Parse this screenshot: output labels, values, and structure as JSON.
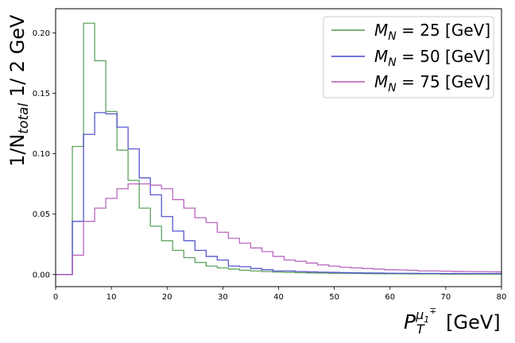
{
  "chart_data": {
    "type": "line",
    "title": "",
    "xlabel": {
      "main": "P",
      "sub": "T",
      "sup": "μ",
      "sup_sub": "1",
      "sup_sup": "∓",
      "unit": " [GeV]"
    },
    "ylabel": {
      "pre": "1/N",
      "sub": "total",
      "post": " 1/ 2 GeV"
    },
    "xlim": [
      0,
      80
    ],
    "ylim": [
      -0.01,
      0.22
    ],
    "xticks": [
      0,
      10,
      20,
      30,
      40,
      50,
      60,
      70,
      80
    ],
    "xtick_labels": [
      "0",
      "10",
      "20",
      "30",
      "40",
      "50",
      "60",
      "70",
      "80"
    ],
    "yticks": [
      0.0,
      0.05,
      0.1,
      0.15,
      0.2
    ],
    "ytick_labels": [
      "0.00",
      "0.05",
      "0.10",
      "0.15",
      "0.20"
    ],
    "grid": false,
    "legend_position": "top-right",
    "bin_edges": [
      0,
      1,
      3,
      5,
      7,
      9,
      11,
      13,
      15,
      17,
      19,
      21,
      23,
      25,
      27,
      29,
      31,
      33,
      35,
      37,
      39,
      41,
      43,
      45,
      47,
      49,
      51,
      53,
      55,
      57,
      59,
      61,
      63,
      65,
      67,
      69,
      71,
      73,
      75,
      77,
      79,
      80
    ],
    "series": [
      {
        "name": "M_N = 25 [GeV]",
        "legend": {
          "main": "M",
          "sub": "N",
          "rest": " = 25 [GeV]"
        },
        "color": "#4e9a4e",
        "values": [
          0,
          0,
          0.106,
          0.208,
          0.177,
          0.135,
          0.103,
          0.078,
          0.055,
          0.04,
          0.028,
          0.02,
          0.014,
          0.01,
          0.007,
          0.0055,
          0.0045,
          0.0035,
          0.003,
          0.0025,
          0.002,
          0.0018,
          0.0015,
          0.0013,
          0.0012,
          0.001,
          0.001,
          0.0009,
          0.0008,
          0.0007,
          0.0006,
          0.0006,
          0.0005,
          0.0005,
          0.0005,
          0.0004,
          0.0004,
          0.0004,
          0.0004,
          0.0004,
          0.0004
        ]
      },
      {
        "name": "M_N = 50 [GeV]",
        "legend": {
          "main": "M",
          "sub": "N",
          "rest": " = 50 [GeV]"
        },
        "color": "#4444cc",
        "values": [
          0,
          0,
          0.044,
          0.116,
          0.134,
          0.133,
          0.122,
          0.104,
          0.08,
          0.066,
          0.048,
          0.036,
          0.028,
          0.02,
          0.015,
          0.012,
          0.007,
          0.0065,
          0.005,
          0.004,
          0.003,
          0.003,
          0.0025,
          0.0022,
          0.002,
          0.0018,
          0.0016,
          0.0014,
          0.0013,
          0.0012,
          0.0011,
          0.001,
          0.001,
          0.0009,
          0.0009,
          0.0008,
          0.0008,
          0.0008,
          0.0008,
          0.0008,
          0.0008
        ]
      },
      {
        "name": "M_N = 75 [GeV]",
        "legend": {
          "main": "M",
          "sub": "N",
          "rest": " = 75 [GeV]"
        },
        "color": "#b156b8",
        "values": [
          0,
          0,
          0.016,
          0.044,
          0.055,
          0.063,
          0.071,
          0.075,
          0.075,
          0.074,
          0.071,
          0.062,
          0.055,
          0.047,
          0.043,
          0.035,
          0.03,
          0.026,
          0.022,
          0.019,
          0.015,
          0.012,
          0.011,
          0.0095,
          0.008,
          0.007,
          0.006,
          0.0055,
          0.005,
          0.0045,
          0.004,
          0.0038,
          0.0035,
          0.003,
          0.003,
          0.0028,
          0.0026,
          0.0025,
          0.0024,
          0.0023,
          0.0022
        ]
      }
    ]
  }
}
